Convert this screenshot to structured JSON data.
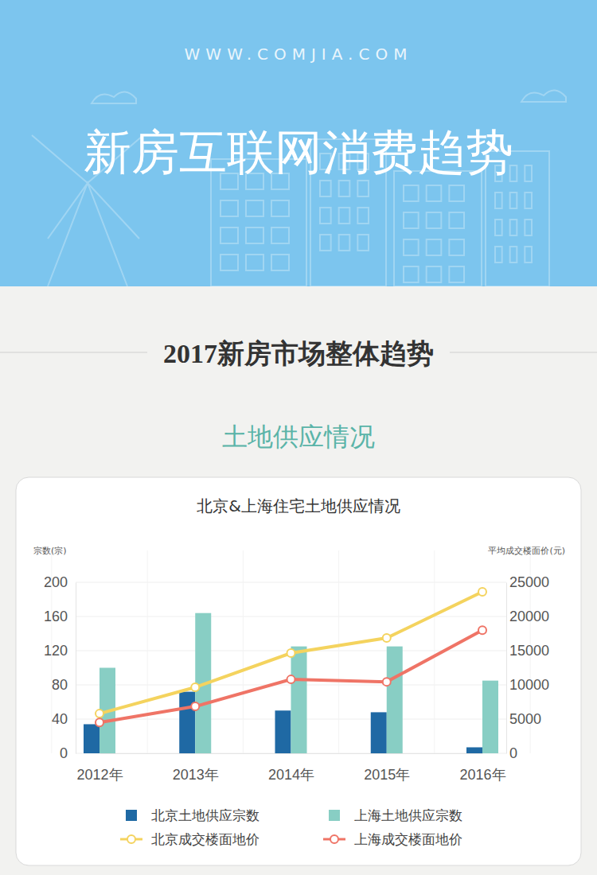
{
  "page": {
    "url": "WWW.COMJIA.COM",
    "banner": "新房互联网消费趋势",
    "section": "2017新房市场整体趋势",
    "subsection": "土地供应情况"
  },
  "chart_data": {
    "type": "bar",
    "title": "北京&上海住宅土地供应情况",
    "categories": [
      "2012年",
      "2013年",
      "2014年",
      "2015年",
      "2016年"
    ],
    "y_label": "宗数(宗)",
    "y2_label": "平均成交楼面价(元)",
    "ylim": [
      0,
      200
    ],
    "yticks": [
      0,
      40,
      80,
      120,
      160,
      200
    ],
    "y2lim": [
      0,
      25000
    ],
    "y2ticks": [
      0,
      5000,
      10000,
      15000,
      20000,
      25000
    ],
    "grid": true,
    "legend": "bottom",
    "series": [
      {
        "name": "北京土地供应宗数",
        "type": "bar",
        "color": "#1f69a4",
        "values": [
          34,
          72,
          50,
          48,
          7
        ]
      },
      {
        "name": "上海土地供应宗数",
        "type": "bar",
        "color": "#88cec4",
        "values": [
          100,
          164,
          125,
          125,
          85
        ]
      },
      {
        "name": "北京成交楼面地价",
        "type": "line",
        "axis": "y2",
        "color": "#f4d35e",
        "marker": "circle",
        "line_style": "solid",
        "values": [
          5800,
          9650,
          14650,
          16850,
          23600
        ]
      },
      {
        "name": "上海成交楼面地价",
        "type": "line",
        "axis": "y2",
        "color": "#ef7466",
        "marker": "circle",
        "line_style": "solid",
        "values": [
          4500,
          6850,
          10800,
          10450,
          18000
        ]
      }
    ]
  }
}
